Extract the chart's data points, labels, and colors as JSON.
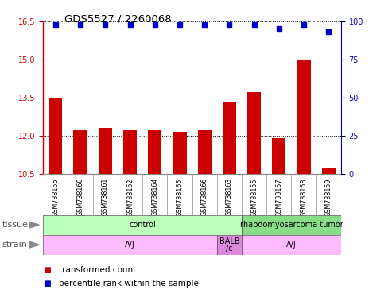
{
  "title": "GDS5527 / 2260068",
  "samples": [
    "GSM738156",
    "GSM738160",
    "GSM738161",
    "GSM738162",
    "GSM738164",
    "GSM738165",
    "GSM738166",
    "GSM738163",
    "GSM738155",
    "GSM738157",
    "GSM738158",
    "GSM738159"
  ],
  "bar_values": [
    13.5,
    12.2,
    12.3,
    12.2,
    12.2,
    12.15,
    12.2,
    13.35,
    13.7,
    11.9,
    15.0,
    10.75
  ],
  "percentile_values": [
    98,
    98,
    98,
    98,
    98,
    98,
    98,
    98,
    98,
    95,
    98,
    93
  ],
  "ylim_left": [
    10.5,
    16.5
  ],
  "ylim_right": [
    0,
    100
  ],
  "yticks_left": [
    10.5,
    12.0,
    13.5,
    15.0,
    16.5
  ],
  "yticks_right": [
    0,
    25,
    50,
    75,
    100
  ],
  "bar_color": "#cc0000",
  "dot_color": "#0000cc",
  "tissue_ranges": [
    {
      "start": 0,
      "end": 7,
      "text": "control",
      "color": "#bbffbb"
    },
    {
      "start": 8,
      "end": 11,
      "text": "rhabdomyosarcoma tumor",
      "color": "#88dd88"
    }
  ],
  "strain_ranges": [
    {
      "start": 0,
      "end": 6,
      "text": "A/J",
      "color": "#ffbbff"
    },
    {
      "start": 7,
      "end": 7,
      "text": "BALB\n/c",
      "color": "#dd88dd"
    },
    {
      "start": 8,
      "end": 11,
      "text": "A/J",
      "color": "#ffbbff"
    }
  ],
  "background_color": "#ffffff"
}
